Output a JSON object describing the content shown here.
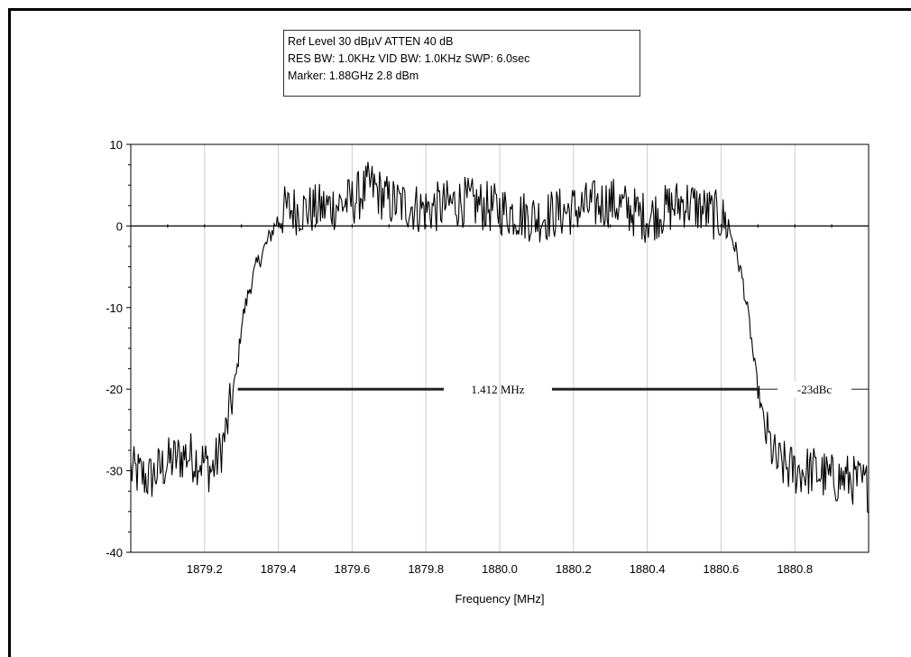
{
  "info_box": {
    "line1": "Ref Level 30 dBµV    ATTEN 40 dB",
    "line2": "RES BW: 1.0KHz  VID BW: 1.0KHz  SWP: 6.0sec",
    "line3": "Marker: 1.88GHz  2.8 dBm"
  },
  "chart_data": {
    "type": "line",
    "title": "",
    "xlabel": "Frequency [MHz]",
    "ylabel": "",
    "xlim": [
      1879.0,
      1881.0
    ],
    "ylim": [
      -40,
      10
    ],
    "x_ticks": [
      1879.2,
      1879.4,
      1879.6,
      1879.8,
      1880.0,
      1880.2,
      1880.4,
      1880.6,
      1880.8
    ],
    "x_tick_labels": [
      "1879.2",
      "1879.4",
      "1879.6",
      "1879.8",
      "1880.0",
      "1880.2",
      "1880.4",
      "1880.6",
      "1880.8"
    ],
    "y_ticks": [
      10,
      0,
      -10,
      -20,
      -30,
      -40
    ],
    "y_tick_labels": [
      "10",
      "0",
      "-10",
      "-20",
      "-30",
      "-40"
    ],
    "grid": true,
    "series": [
      {
        "color": "#000000",
        "x": [
          1879.0,
          1879.05,
          1879.1,
          1879.15,
          1879.2,
          1879.22,
          1879.24,
          1879.26,
          1879.27,
          1879.28,
          1879.29,
          1879.3,
          1879.31,
          1879.32,
          1879.34,
          1879.36,
          1879.38,
          1879.4,
          1879.42,
          1879.5,
          1879.6,
          1879.65,
          1879.7,
          1879.8,
          1879.9,
          1880.0,
          1880.1,
          1880.2,
          1880.3,
          1880.35,
          1880.4,
          1880.45,
          1880.5,
          1880.55,
          1880.6,
          1880.62,
          1880.64,
          1880.66,
          1880.68,
          1880.69,
          1880.7,
          1880.72,
          1880.75,
          1880.8,
          1880.85,
          1880.9,
          1880.95,
          1881.0
        ],
        "y": [
          -30,
          -31,
          -29,
          -28,
          -29,
          -30,
          -28,
          -25,
          -22,
          -20,
          -17,
          -12,
          -10,
          -8,
          -5,
          -3,
          -1,
          1,
          2,
          2,
          3,
          5,
          3,
          2,
          3,
          2,
          1,
          2,
          3,
          2,
          1,
          2,
          3,
          2,
          1,
          0,
          -3,
          -7,
          -13,
          -17,
          -20,
          -25,
          -29,
          -30,
          -30,
          -31,
          -31,
          -32
        ]
      }
    ],
    "annotations": [
      {
        "text": "1.412 MHz",
        "x_from": 1879.29,
        "x_to": 1880.7,
        "y": -20
      },
      {
        "text": "-23dBc",
        "y": -20
      }
    ]
  }
}
